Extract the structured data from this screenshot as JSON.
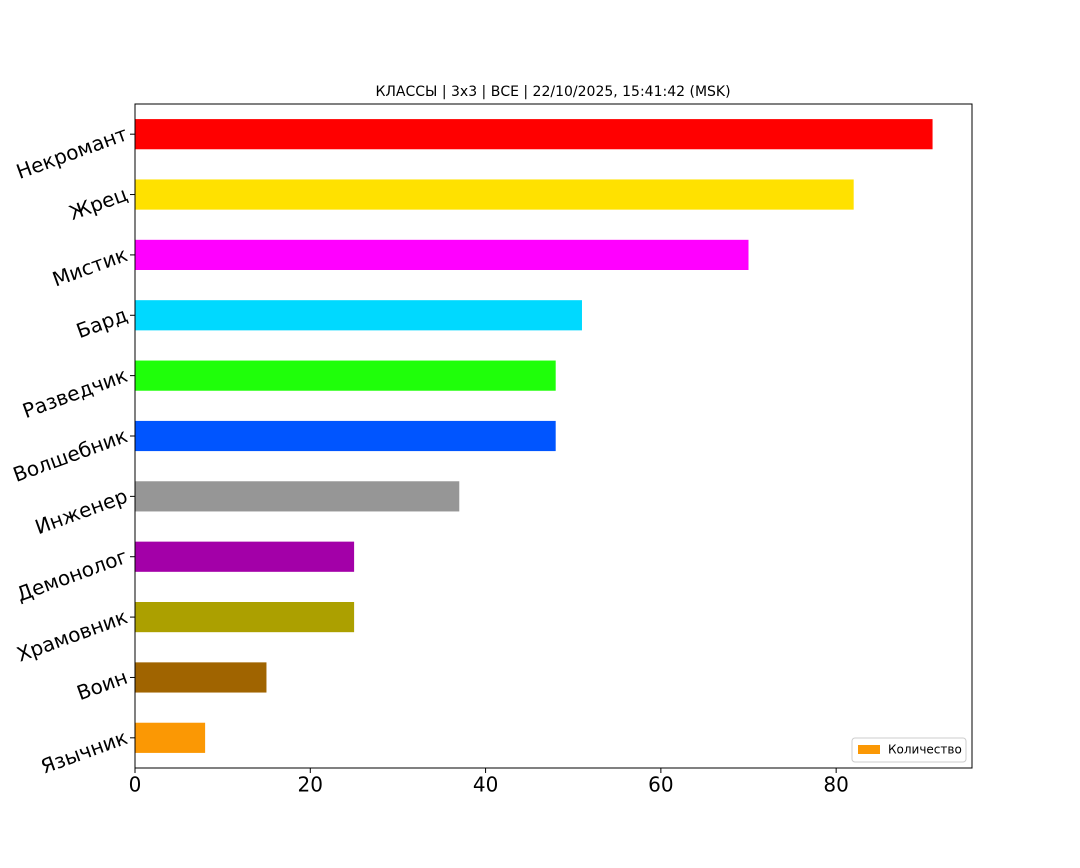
{
  "chart_data": {
    "type": "bar",
    "orientation": "horizontal",
    "title": "КЛАССЫ | 3x3 | ВСЕ | 22/10/2025, 15:41:42 (MSK)",
    "categories": [
      "Некромант",
      "Жрец",
      "Мистик",
      "Бард",
      "Разведчик",
      "Волшебник",
      "Инженер",
      "Демонолог",
      "Храмовник",
      "Воин",
      "Язычник"
    ],
    "series": [
      {
        "name": "Количество",
        "color": "#fb9804",
        "colors": [
          "#ff0000",
          "#ffe100",
          "#ff00ff",
          "#00d9ff",
          "#1fff0a",
          "#0055ff",
          "#969696",
          "#a300a8",
          "#aca000",
          "#a06400",
          "#fb9804"
        ],
        "values": [
          91,
          82,
          70,
          51,
          48,
          48,
          37,
          25,
          25,
          15,
          8
        ]
      }
    ],
    "xlim": [
      0,
      95.5
    ],
    "xticks": [
      0,
      20,
      40,
      60,
      80
    ],
    "legend": "lower right"
  }
}
